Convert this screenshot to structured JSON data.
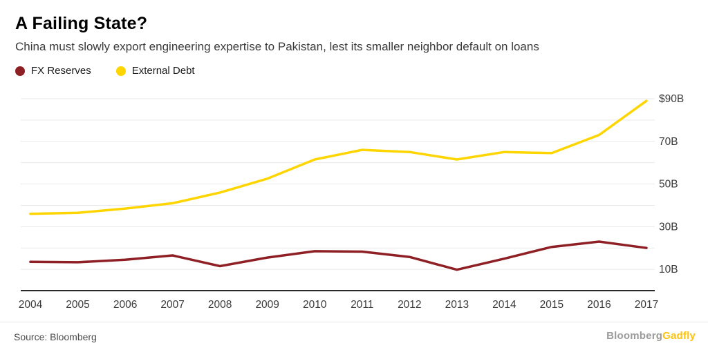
{
  "header": {
    "title": "A Failing State?",
    "subtitle": "China must slowly export engineering expertise to Pakistan, lest its smaller neighbor default on loans"
  },
  "legend": {
    "items": [
      {
        "label": "FX Reserves",
        "color": "#8e1f24"
      },
      {
        "label": "External Debt",
        "color": "#ffd500"
      }
    ]
  },
  "chart_data": {
    "type": "line",
    "title": "A Failing State?",
    "x": [
      2004,
      2005,
      2006,
      2007,
      2008,
      2009,
      2010,
      2011,
      2012,
      2013,
      2014,
      2015,
      2016,
      2017
    ],
    "series": [
      {
        "name": "FX Reserves",
        "color": "#8e1f24",
        "values": [
          13.5,
          13.3,
          14.5,
          16.5,
          11.5,
          15.5,
          18.5,
          18.3,
          15.8,
          9.8,
          15,
          20.5,
          23,
          20
        ]
      },
      {
        "name": "External Debt",
        "color": "#ffd500",
        "values": [
          36,
          36.5,
          38.5,
          41,
          46,
          52.5,
          61.5,
          66,
          65,
          61.5,
          65,
          64.5,
          73,
          89
        ]
      }
    ],
    "ylim": [
      0,
      93
    ],
    "unit": "$B",
    "grid": true,
    "gridline_values": [
      10,
      20,
      30,
      40,
      50,
      60,
      70,
      80,
      90
    ],
    "yticks": [
      {
        "value": 10,
        "label": "10B"
      },
      {
        "value": 30,
        "label": "30B"
      },
      {
        "value": 50,
        "label": "50B"
      },
      {
        "value": 70,
        "label": "70B"
      },
      {
        "value": 90,
        "label": "$90B"
      }
    ],
    "legend_position": "top-left",
    "axis_color": "#2a2a2a",
    "gridline_color": "#e9e9e9",
    "tick_label_color": "#3a3a3a"
  },
  "footer": {
    "source": "Source: Bloomberg",
    "brand": {
      "primary": "Bloomberg",
      "secondary": "Gadfly",
      "primary_color": "#9b9b9b",
      "secondary_color": "#ffc20e"
    }
  }
}
